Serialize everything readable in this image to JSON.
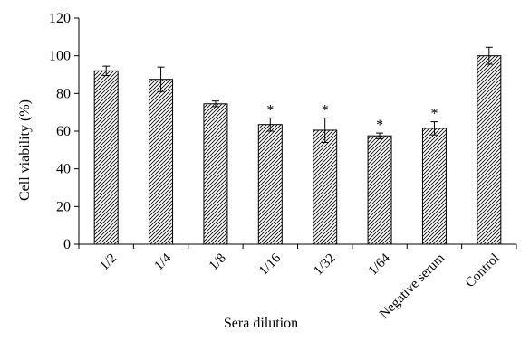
{
  "chart_data": {
    "type": "bar",
    "title": "",
    "xlabel": "Sera dilution",
    "ylabel": "Cell viability (%)",
    "ylim": [
      0,
      120
    ],
    "yticks": [
      0,
      20,
      40,
      60,
      80,
      100,
      120
    ],
    "grid": false,
    "categories": [
      "1/2",
      "1/4",
      "1/8",
      "1/16",
      "1/32",
      "1/64",
      "Negative serum",
      "Control"
    ],
    "values": [
      92,
      87.5,
      74.5,
      63.5,
      60.5,
      57.5,
      61.5,
      100
    ],
    "errors": [
      2.5,
      6.5,
      1.5,
      3.5,
      6.5,
      1.5,
      3.5,
      4.5
    ],
    "annotations": [
      "",
      "",
      "",
      "*",
      "*",
      "*",
      "*",
      ""
    ],
    "bar_fill": "diagonal-hatch",
    "bar_color": "#000000"
  }
}
